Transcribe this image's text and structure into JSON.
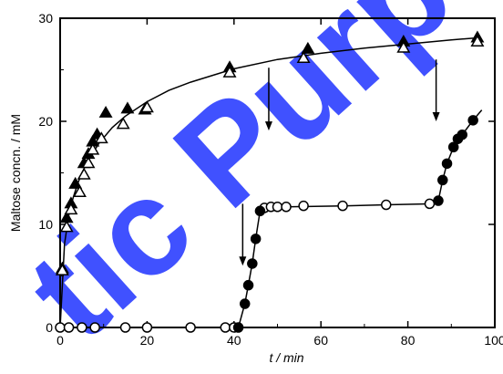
{
  "watermark": {
    "text": "tic Purposes",
    "color": "#1f33ff"
  },
  "chart_data": {
    "type": "scatter",
    "title": "",
    "xlabel": "t / min",
    "ylabel": "Maltose concn. / mM",
    "xlim": [
      0,
      100
    ],
    "ylim": [
      0,
      30
    ],
    "xticks": [
      0,
      20,
      40,
      60,
      80,
      100
    ],
    "yticks": [
      0,
      10,
      20,
      30
    ],
    "grid": false,
    "series": [
      {
        "marker": "triangle-filled",
        "x": [
          0.5,
          1.5,
          2.5,
          3.5,
          5.5,
          6.5,
          7.5,
          8.5,
          10.5,
          15.5,
          19.5,
          39,
          57,
          79,
          96
        ],
        "y": [
          5.7,
          10.6,
          12.0,
          13.9,
          15.9,
          16.8,
          18.0,
          18.7,
          20.8,
          21.2,
          21.1,
          25.2,
          27.0,
          27.7,
          28.1
        ]
      },
      {
        "marker": "triangle-open",
        "x": [
          0.5,
          1.5,
          2.5,
          4.5,
          5.5,
          6.5,
          7.5,
          9.5,
          14.5,
          20,
          39,
          56,
          79,
          96
        ],
        "y": [
          5.5,
          9.7,
          11.4,
          13.1,
          14.8,
          15.9,
          17.2,
          18.3,
          19.7,
          21.3,
          24.7,
          26.1,
          27.1,
          27.7
        ]
      },
      {
        "marker": "circle-open",
        "x": [
          0,
          2,
          5,
          8,
          15,
          20,
          30,
          38,
          40,
          47,
          48.5,
          50,
          52,
          56,
          65,
          75,
          85
        ],
        "y": [
          0,
          0,
          0,
          0,
          0,
          0,
          0,
          0,
          0,
          11.6,
          11.7,
          11.7,
          11.7,
          11.8,
          11.8,
          11.9,
          12.0
        ]
      },
      {
        "marker": "circle-filled",
        "x": [
          41,
          42.5,
          43.3,
          44.2,
          45,
          46,
          87,
          88,
          89,
          90.5,
          91.5,
          92.5,
          95
        ],
        "y": [
          0,
          2.3,
          4.1,
          6.2,
          8.6,
          11.3,
          12.3,
          14.3,
          15.9,
          17.5,
          18.3,
          18.7,
          20.1
        ]
      }
    ],
    "curves": [
      {
        "name": "fit-triangles",
        "x": [
          0,
          1,
          2,
          3,
          4,
          5,
          7,
          9,
          12,
          15,
          20,
          25,
          30,
          40,
          50,
          60,
          70,
          80,
          90,
          96
        ],
        "y": [
          0,
          8.1,
          10.9,
          12.6,
          13.9,
          15.0,
          16.6,
          17.9,
          19.4,
          20.5,
          21.9,
          23.0,
          23.8,
          25.1,
          26.0,
          26.6,
          27.1,
          27.5,
          27.9,
          28.1
        ]
      },
      {
        "name": "trace-circles",
        "x": [
          0,
          38,
          40,
          41,
          42.5,
          43.3,
          44.2,
          45,
          46,
          47,
          52,
          65,
          75,
          86,
          87,
          88,
          89,
          90.5,
          91.5,
          92.5,
          95,
          97
        ],
        "y": [
          0,
          0,
          0,
          0,
          2.3,
          4.1,
          6.2,
          8.6,
          11.3,
          11.6,
          11.7,
          11.8,
          11.9,
          12.0,
          12.3,
          14.3,
          15.9,
          17.5,
          18.3,
          18.7,
          20.1,
          21.1
        ]
      }
    ],
    "arrows": [
      {
        "x": 42,
        "y_top": 12.0,
        "y_tip": 6.0
      },
      {
        "x": 48,
        "y_top": 25.2,
        "y_tip": 19.1
      },
      {
        "x": 86.5,
        "y_top": 26.0,
        "y_tip": 20.0
      }
    ]
  }
}
